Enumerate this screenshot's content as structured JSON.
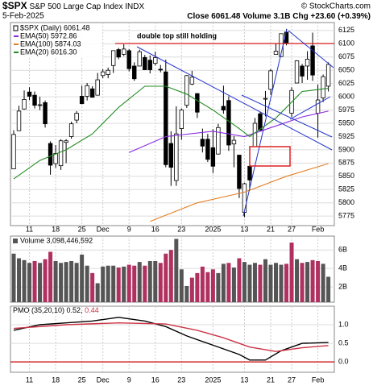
{
  "header": {
    "symbol": "$SPX",
    "name": "S&P 500 Large Cap Index",
    "exchange": "INDX",
    "date": "5-Feb-2025",
    "close_label": "Close",
    "close": "6061.48",
    "volume_label": "Volume",
    "volume": "3.1B",
    "chg_label": "Chg",
    "chg": "+23.60 (+0.39%)",
    "credit": "© StockCharts.com"
  },
  "chart_data": [
    {
      "type": "candlestick",
      "name": "$SPX (Daily) 6061.48",
      "color": "#000000",
      "legend": "top-left",
      "grid": true,
      "annotation": "double top still holding",
      "categories": [
        null,
        null,
        null,
        "11",
        null,
        null,
        null,
        null,
        "18",
        null,
        null,
        null,
        null,
        "25",
        null,
        null,
        null,
        "Dec",
        null,
        null,
        null,
        null,
        "9",
        null,
        null,
        null,
        null,
        "16",
        null,
        null,
        null,
        null,
        "23",
        null,
        null,
        null,
        null,
        null,
        "2025",
        null,
        null,
        null,
        null,
        null,
        "13",
        null,
        null,
        null,
        null,
        "21",
        null,
        null,
        null,
        "27",
        null,
        null,
        null,
        null,
        "Feb",
        null,
        null
      ],
      "open": [
        5864,
        5936,
        5977,
        6009,
        6003,
        5985,
        5989,
        5912,
        5874,
        5870,
        5914,
        5925,
        5956,
        6001,
        6001,
        6015,
        6003,
        6040,
        6042,
        6059,
        6089,
        6080,
        6087,
        6058,
        6058,
        6074,
        6069,
        6063,
        6052,
        6047,
        5912,
        5842,
        5940,
        5984,
        6024,
        6006,
        5920,
        5920,
        5904,
        5892,
        5982,
        5993,
        5911,
        5890,
        5782,
        5869,
        5906,
        5968,
        5996,
        6014,
        6080,
        6076,
        6122,
        5969,
        6026,
        6058,
        6058,
        6096,
        5969,
        5998,
        6020
      ],
      "high": [
        5937,
        5983,
        6012,
        6018,
        6010,
        6000,
        5993,
        5916,
        5909,
        5920,
        5920,
        5953,
        5973,
        6021,
        6026,
        6020,
        6045,
        6052,
        6055,
        6087,
        6092,
        6099,
        6090,
        6065,
        6089,
        6079,
        6078,
        6085,
        6060,
        6070,
        5935,
        5982,
        5978,
        6041,
        6049,
        6007,
        5940,
        5930,
        5939,
        5949,
        6021,
        6001,
        5926,
        5890,
        5838,
        5871,
        5960,
        5972,
        6011,
        6052,
        6101,
        6119,
        6128,
        6018,
        6069,
        6062,
        6086,
        6121,
        6023,
        6042,
        6065
      ],
      "low": [
        5864,
        5936,
        5976,
        5994,
        5978,
        5975,
        5942,
        5853,
        5866,
        5862,
        5875,
        5921,
        5950,
        5986,
        5993,
        5999,
        6003,
        6035,
        6035,
        6045,
        6071,
        6077,
        6048,
        6030,
        6058,
        6051,
        6044,
        6059,
        6046,
        5867,
        5832,
        5832,
        5919,
        5979,
        6022,
        5960,
        5895,
        5877,
        5856,
        5891,
        5968,
        5898,
        5867,
        5809,
        5773,
        5825,
        5906,
        5935,
        5963,
        6004,
        6080,
        6075,
        6097,
        5962,
        6026,
        6026,
        6032,
        6030,
        5923,
        5990,
        6010
      ],
      "close": [
        5929,
        5973,
        5995,
        6001,
        5984,
        5985,
        5949,
        5871,
        5893,
        5917,
        5917,
        5949,
        5969,
        5987,
        6021,
        5999,
        6032,
        6047,
        6050,
        6087,
        6075,
        6090,
        6053,
        6034,
        6085,
        6051,
        6051,
        6074,
        6051,
        5872,
        5867,
        5930,
        5975,
        6040,
        6037,
        5971,
        5907,
        5882,
        5869,
        5942,
        5975,
        5909,
        5918,
        5827,
        5836,
        5843,
        5950,
        5937,
        5997,
        6049,
        6086,
        6119,
        6101,
        6012,
        6068,
        6039,
        6071,
        6041,
        5994,
        6038,
        6061
      ],
      "series": [
        {
          "name": "EMA(50) 5972.86",
          "color": "#8a2be2",
          "x": [
            22,
            29,
            38,
            44,
            50,
            55,
            60
          ],
          "values": [
            5895,
            5925,
            5935,
            5925,
            5945,
            5962,
            5973
          ]
        },
        {
          "name": "EMA(100) 5874.03",
          "color": "#e67e22",
          "x": [
            26,
            35,
            44,
            52,
            60
          ],
          "values": [
            5765,
            5800,
            5820,
            5850,
            5874
          ]
        },
        {
          "name": "EMA(20) 6016.30",
          "color": "#228b22",
          "x": [
            0,
            5,
            10,
            15,
            20,
            25,
            29,
            33,
            38,
            43,
            45,
            50,
            55,
            60
          ],
          "values": [
            5845,
            5880,
            5900,
            5930,
            5980,
            6020,
            6020,
            6005,
            5975,
            5940,
            5925,
            5960,
            6010,
            6016
          ]
        }
      ],
      "ylim": [
        5757,
        6140
      ],
      "yticks": [
        5775,
        5800,
        5825,
        5850,
        5875,
        5900,
        5925,
        5950,
        5975,
        6000,
        6025,
        6050,
        6075,
        6100,
        6125
      ]
    },
    {
      "type": "bar",
      "name": "Volume 3,098,446,592",
      "up_color": "#555555",
      "down_color": "#b03060",
      "grid": true,
      "values": [
        5.6,
        5.1,
        4.9,
        4.6,
        4.8,
        4.6,
        5.0,
        5.8,
        4.8,
        4.6,
        4.7,
        4.8,
        4.6,
        5.5,
        4.3,
        3.5,
        2.4,
        4.2,
        4.3,
        4.3,
        4.1,
        4.2,
        4.4,
        4.3,
        4.7,
        4.3,
        4.8,
        4.8,
        4.6,
        5.6,
        6.0,
        7.2,
        3.9,
        2.1,
        3.0,
        3.5,
        4.2,
        3.6,
        3.9,
        3.5,
        4.5,
        4.6,
        4.1,
        5.1,
        4.7,
        4.4,
        4.6,
        4.4,
        5.0,
        4.4,
        4.6,
        4.4,
        4.5,
        6.8,
        5.0,
        4.6,
        4.7,
        4.9,
        4.8,
        4.5,
        3.1
      ],
      "ylim": [
        0.35,
        7.5
      ],
      "yticks": [
        {
          "value": 2,
          "label": "2B"
        },
        {
          "value": 4,
          "label": "4B"
        },
        {
          "value": 6,
          "label": "6B"
        }
      ]
    },
    {
      "type": "line",
      "grid": true,
      "baseline_color": "#cc0000",
      "series": [
        {
          "name": "PMO (35,20,10) 0.52,",
          "color": "#000000",
          "x": [
            0,
            5,
            10,
            15,
            20,
            25,
            29,
            33,
            38,
            43,
            45,
            48,
            51,
            55,
            60
          ],
          "values": [
            0.85,
            1.0,
            1.05,
            1.1,
            1.2,
            1.1,
            0.95,
            0.7,
            0.45,
            0.2,
            0.05,
            0.05,
            0.3,
            0.5,
            0.52
          ]
        },
        {
          "name": "0.44",
          "color": "#cc3344",
          "x": [
            0,
            10,
            20,
            29,
            35,
            40,
            45,
            50,
            55,
            60
          ],
          "values": [
            0.9,
            1.0,
            1.05,
            1.02,
            0.85,
            0.65,
            0.4,
            0.28,
            0.38,
            0.44
          ]
        }
      ],
      "ylim": [
        -0.28,
        1.5
      ],
      "yticks": [
        {
          "value": 0,
          "label": "0.0"
        },
        {
          "value": 0.5,
          "label": "0.5"
        },
        {
          "value": 1,
          "label": "1.0"
        }
      ]
    }
  ]
}
